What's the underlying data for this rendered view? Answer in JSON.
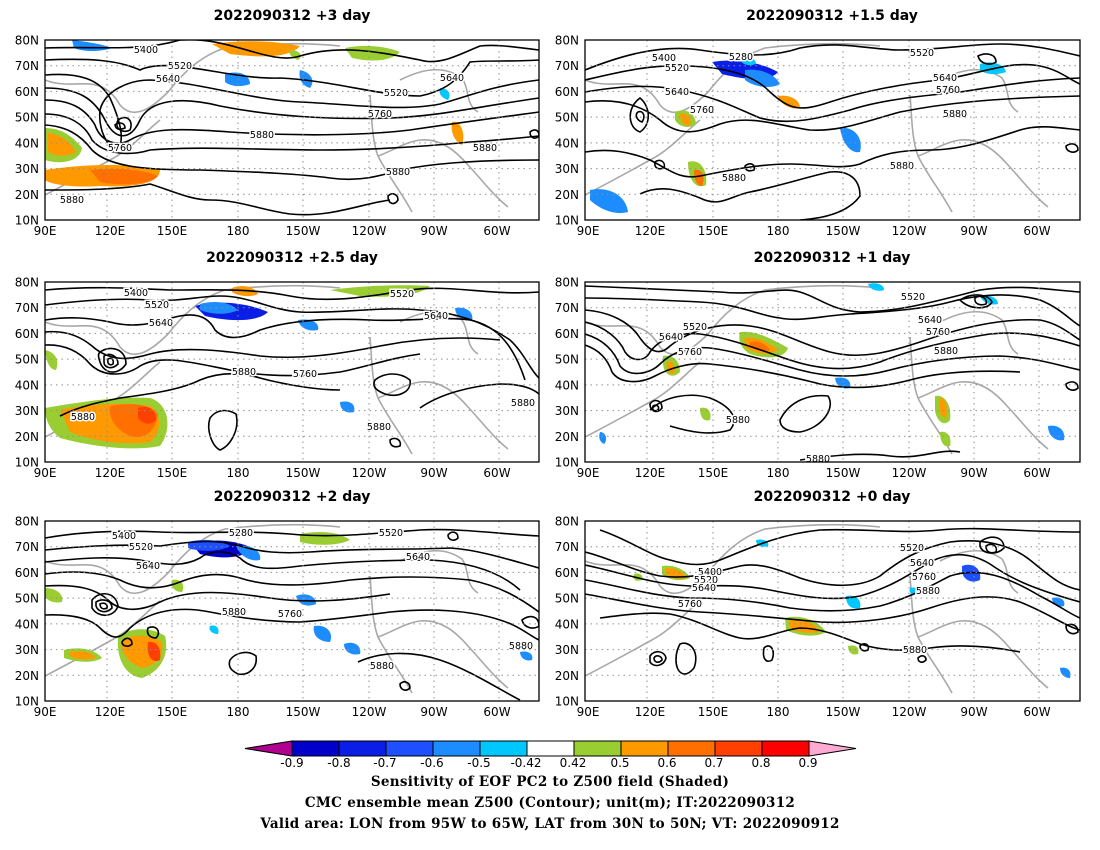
{
  "panels": [
    {
      "title": "2022090312 +3 day",
      "contour_labels": [
        "5400",
        "5520",
        "5640",
        "5520",
        "5640",
        "5760",
        "5760",
        "5880",
        "5880",
        "5880",
        "5880"
      ]
    },
    {
      "title": "2022090312 +1.5 day",
      "contour_labels": [
        "5400",
        "5280",
        "5520",
        "5520",
        "5640",
        "5640",
        "5760",
        "5760",
        "5880",
        "5880",
        "5880"
      ]
    },
    {
      "title": "2022090312 +2.5 day",
      "contour_labels": [
        "5400",
        "5520",
        "5640",
        "5520",
        "5640",
        "5880",
        "5760",
        "5880",
        "5880",
        "5880"
      ]
    },
    {
      "title": "2022090312 +1 day",
      "contour_labels": [
        "5520",
        "5520",
        "5640",
        "5640",
        "5760",
        "5760",
        "5880",
        "5880",
        "5880"
      ]
    },
    {
      "title": "2022090312 +2 day",
      "contour_labels": [
        "5400",
        "5280",
        "5520",
        "5520",
        "5640",
        "5640",
        "5880",
        "5760",
        "5880",
        "5880"
      ]
    },
    {
      "title": "2022090312 +0 day",
      "contour_labels": [
        "5520",
        "5400",
        "5520",
        "5640",
        "5640",
        "5760",
        "5760",
        "5880",
        "5880"
      ]
    }
  ],
  "lat_labels": [
    "80N",
    "70N",
    "60N",
    "50N",
    "40N",
    "30N",
    "20N",
    "10N"
  ],
  "lon_labels": [
    "90E",
    "120E",
    "150E",
    "180",
    "150W",
    "120W",
    "90W",
    "60W"
  ],
  "colorbar": {
    "tick_labels": [
      "-0.9",
      "-0.8",
      "-0.7",
      "-0.6",
      "-0.5",
      "-0.42",
      "0.42",
      "0.5",
      "0.6",
      "0.7",
      "0.8",
      "0.9"
    ],
    "colors": [
      "#b0008f",
      "#0000c8",
      "#0a1ee6",
      "#1e50ff",
      "#1c8cff",
      "#00c8ff",
      "#ffffff",
      "#9acd32",
      "#ff9900",
      "#ff7000",
      "#ff4000",
      "#ff0000",
      "#ffaad2"
    ]
  },
  "footer": {
    "line1": "Sensitivity of EOF PC2 to Z500 field (Shaded)",
    "line2": "CMC ensemble mean Z500 (Contour); unit(m); IT:2022090312",
    "line3": "Valid area: LON from 95W to 65W, LAT from 30N to 50N; VT: 2022090912"
  }
}
